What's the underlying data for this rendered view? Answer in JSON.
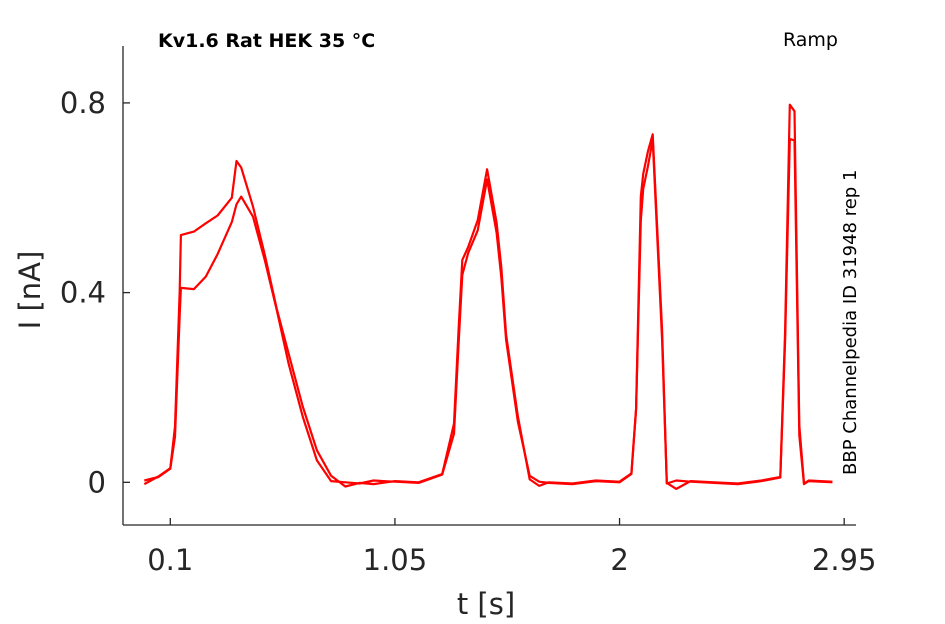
{
  "chart_data": {
    "type": "line",
    "title": "Kv1.6  Rat  HEK  35 °C",
    "protocol_label": "Ramp",
    "side_label": "BBP Channelpedia ID 31948 rep 1",
    "xlabel": "t [s]",
    "ylabel": "I [nA]",
    "xlim": [
      -0.1,
      3.0
    ],
    "ylim": [
      -0.09,
      0.92
    ],
    "x_ticks": [
      0.1,
      1.05,
      2,
      2.95
    ],
    "x_tick_labels": [
      "0.1",
      "1.05",
      "2",
      "2.95"
    ],
    "y_ticks": [
      0,
      0.4,
      0.8
    ],
    "y_tick_labels": [
      "0",
      "0.4",
      "0.8"
    ],
    "grid": false,
    "series_color": "#ff0000",
    "series": [
      {
        "x": [
          -0.01,
          0.05,
          0.1,
          0.12,
          0.14,
          0.145,
          0.2,
          0.25,
          0.3,
          0.36,
          0.38,
          0.4,
          0.45,
          0.5,
          0.55,
          0.6,
          0.66,
          0.72,
          0.78,
          0.84,
          0.9,
          0.96,
          1.05,
          1.15,
          1.25,
          1.3,
          1.32,
          1.335,
          1.36,
          1.4,
          1.44,
          1.48,
          1.5,
          1.52,
          1.57,
          1.62,
          1.66,
          1.7,
          1.8,
          1.9,
          2.0,
          2.05,
          2.07,
          2.09,
          2.1,
          2.12,
          2.14,
          2.18,
          2.2,
          2.24,
          2.3,
          2.4,
          2.5,
          2.6,
          2.68,
          2.7,
          2.72,
          2.74,
          2.76,
          2.78,
          2.8,
          2.9
        ],
        "values": [
          0.0,
          0.01,
          0.03,
          0.1,
          0.35,
          0.41,
          0.41,
          0.43,
          0.48,
          0.55,
          0.59,
          0.6,
          0.56,
          0.47,
          0.36,
          0.25,
          0.14,
          0.05,
          0.0,
          0.0,
          0.0,
          0.0,
          0.0,
          0.0,
          0.02,
          0.1,
          0.3,
          0.44,
          0.48,
          0.53,
          0.64,
          0.53,
          0.43,
          0.3,
          0.13,
          0.01,
          0.0,
          0.0,
          0.0,
          0.0,
          0.0,
          0.02,
          0.15,
          0.55,
          0.62,
          0.67,
          0.72,
          0.3,
          0.0,
          0.0,
          0.0,
          0.0,
          0.0,
          0.0,
          0.01,
          0.3,
          0.72,
          0.72,
          0.1,
          0.0,
          0.0,
          0.0
        ]
      },
      {
        "x": [
          -0.01,
          0.05,
          0.1,
          0.12,
          0.14,
          0.145,
          0.2,
          0.25,
          0.3,
          0.36,
          0.38,
          0.4,
          0.45,
          0.5,
          0.55,
          0.6,
          0.66,
          0.72,
          0.78,
          0.84,
          0.9,
          0.96,
          1.05,
          1.15,
          1.25,
          1.3,
          1.32,
          1.335,
          1.36,
          1.4,
          1.44,
          1.48,
          1.5,
          1.52,
          1.57,
          1.62,
          1.66,
          1.7,
          1.8,
          1.9,
          2.0,
          2.05,
          2.07,
          2.09,
          2.1,
          2.12,
          2.14,
          2.18,
          2.2,
          2.24,
          2.3,
          2.4,
          2.5,
          2.6,
          2.68,
          2.7,
          2.72,
          2.74,
          2.76,
          2.78,
          2.8,
          2.9
        ],
        "values": [
          0.0,
          0.01,
          0.03,
          0.12,
          0.4,
          0.52,
          0.53,
          0.55,
          0.56,
          0.6,
          0.68,
          0.66,
          0.58,
          0.48,
          0.37,
          0.27,
          0.16,
          0.07,
          0.01,
          -0.01,
          0.0,
          0.0,
          0.0,
          0.0,
          0.02,
          0.12,
          0.33,
          0.47,
          0.5,
          0.55,
          0.66,
          0.55,
          0.45,
          0.31,
          0.14,
          0.01,
          -0.01,
          0.0,
          0.0,
          0.0,
          0.0,
          0.02,
          0.16,
          0.6,
          0.65,
          0.7,
          0.73,
          0.32,
          0.0,
          -0.01,
          0.0,
          0.0,
          0.0,
          0.0,
          0.01,
          0.32,
          0.8,
          0.78,
          0.12,
          0.0,
          0.0,
          0.0
        ]
      }
    ]
  }
}
